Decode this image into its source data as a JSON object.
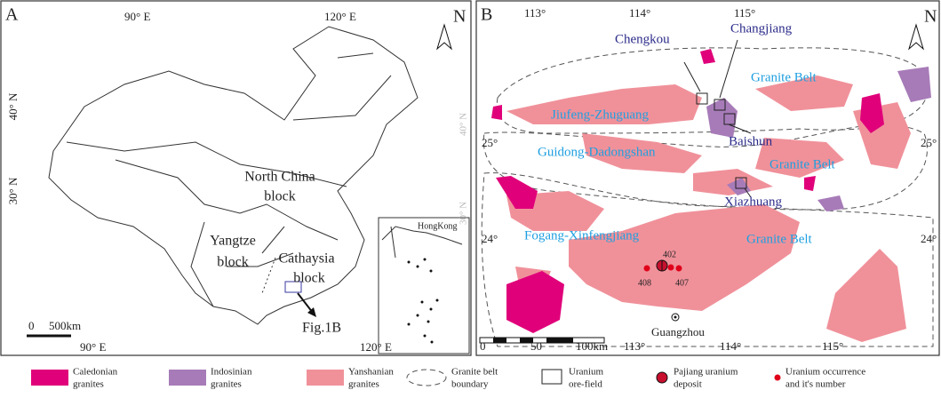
{
  "panel_a": {
    "label": "A",
    "lon_top": [
      "90° E",
      "120° E"
    ],
    "north": "N",
    "lat": [
      "40° N",
      "30° N"
    ],
    "north_china": [
      "North China",
      "block"
    ],
    "yangtze": [
      "Yangtze",
      "block"
    ],
    "cathaysia": [
      "Cathaysia",
      "block"
    ],
    "inset_label": "HongKong",
    "scale": [
      "0",
      "500km"
    ],
    "pointer": "Fig.1B",
    "lon_bottom": [
      "90° E",
      "120° E"
    ]
  },
  "panel_b": {
    "label": "B",
    "lon_top": [
      "113°",
      "114°",
      "115°"
    ],
    "north": "N",
    "faint_lat": [
      "40° N",
      "30° N"
    ],
    "ore_fields": [
      "Chengkou",
      "Changjiang",
      "Baishun",
      "Xiazhuang"
    ],
    "belts": [
      "Jiufeng-Zhuguang",
      "Guidong-Dadongshan",
      "Fogang-Xinfengjiang"
    ],
    "belt_suffix": [
      "Granite Belt",
      "Granite Belt",
      "Granite Belt"
    ],
    "deposits": [
      "402",
      "408",
      "407"
    ],
    "city": "Guangzhou",
    "lat_left": [
      "25°",
      "24°"
    ],
    "lat_right": [
      "25°",
      "24°"
    ],
    "scale": [
      "0",
      "50",
      "100km"
    ],
    "lon_bottom": [
      "113°",
      "114°",
      "115°"
    ]
  },
  "legend": [
    [
      "Caledonian",
      "granites"
    ],
    [
      "Indosinian",
      "granites"
    ],
    [
      "Yanshanian",
      "granites"
    ],
    [
      "Granite belt",
      "boundary"
    ],
    [
      "Uranium",
      "ore-field"
    ],
    [
      "Pajiang uranium",
      "deposit"
    ],
    [
      "Uranium occurrence",
      "and it's number"
    ]
  ]
}
